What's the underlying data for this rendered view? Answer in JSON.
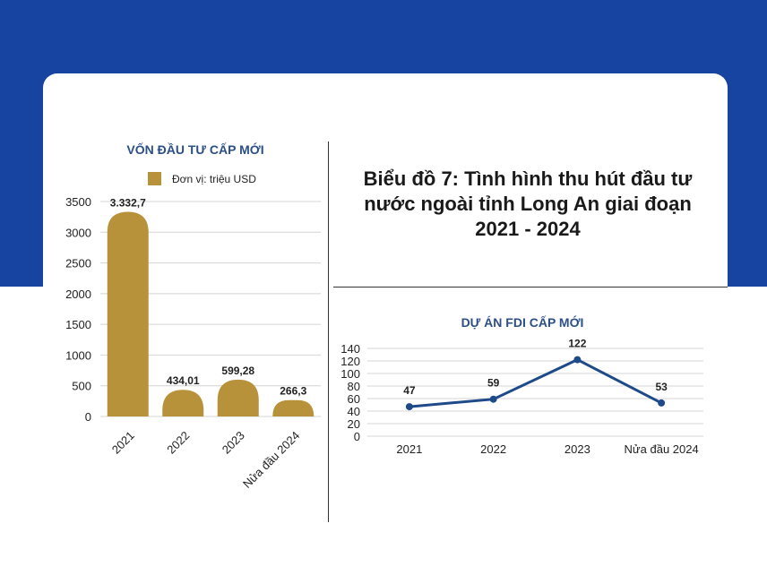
{
  "page_title": "Biểu đồ 7: Tình hình thu hút đầu tư nước ngoài tỉnh Long An giai đoạn 2021 - 2024",
  "colors": {
    "band": "#1744a0",
    "bar": "#b8923a",
    "line": "#1e4a8a",
    "chart_title": "#2b4f86"
  },
  "chart_data": [
    {
      "type": "bar",
      "title": "VỐN ĐẦU TƯ CẤP MỚI",
      "legend": "Đơn vị: triệu USD",
      "legend_position": "top",
      "categories": [
        "2021",
        "2022",
        "2023",
        "Nửa đầu 2024"
      ],
      "values": [
        3332.7,
        434.01,
        599.28,
        266.3
      ],
      "value_labels": [
        "3.332,7",
        "434,01",
        "599,28",
        "266,3"
      ],
      "ylim": [
        0,
        3500
      ],
      "yticks": [
        0,
        500,
        1000,
        1500,
        2000,
        2500,
        3000,
        3500
      ],
      "grid": true
    },
    {
      "type": "line",
      "title": "DỰ ÁN FDI CẤP MỚI",
      "categories": [
        "2021",
        "2022",
        "2023",
        "Nửa đầu 2024"
      ],
      "values": [
        47,
        59,
        122,
        53
      ],
      "ylim": [
        0,
        140
      ],
      "yticks": [
        0,
        20,
        40,
        60,
        80,
        100,
        120,
        140
      ],
      "grid": true
    }
  ]
}
